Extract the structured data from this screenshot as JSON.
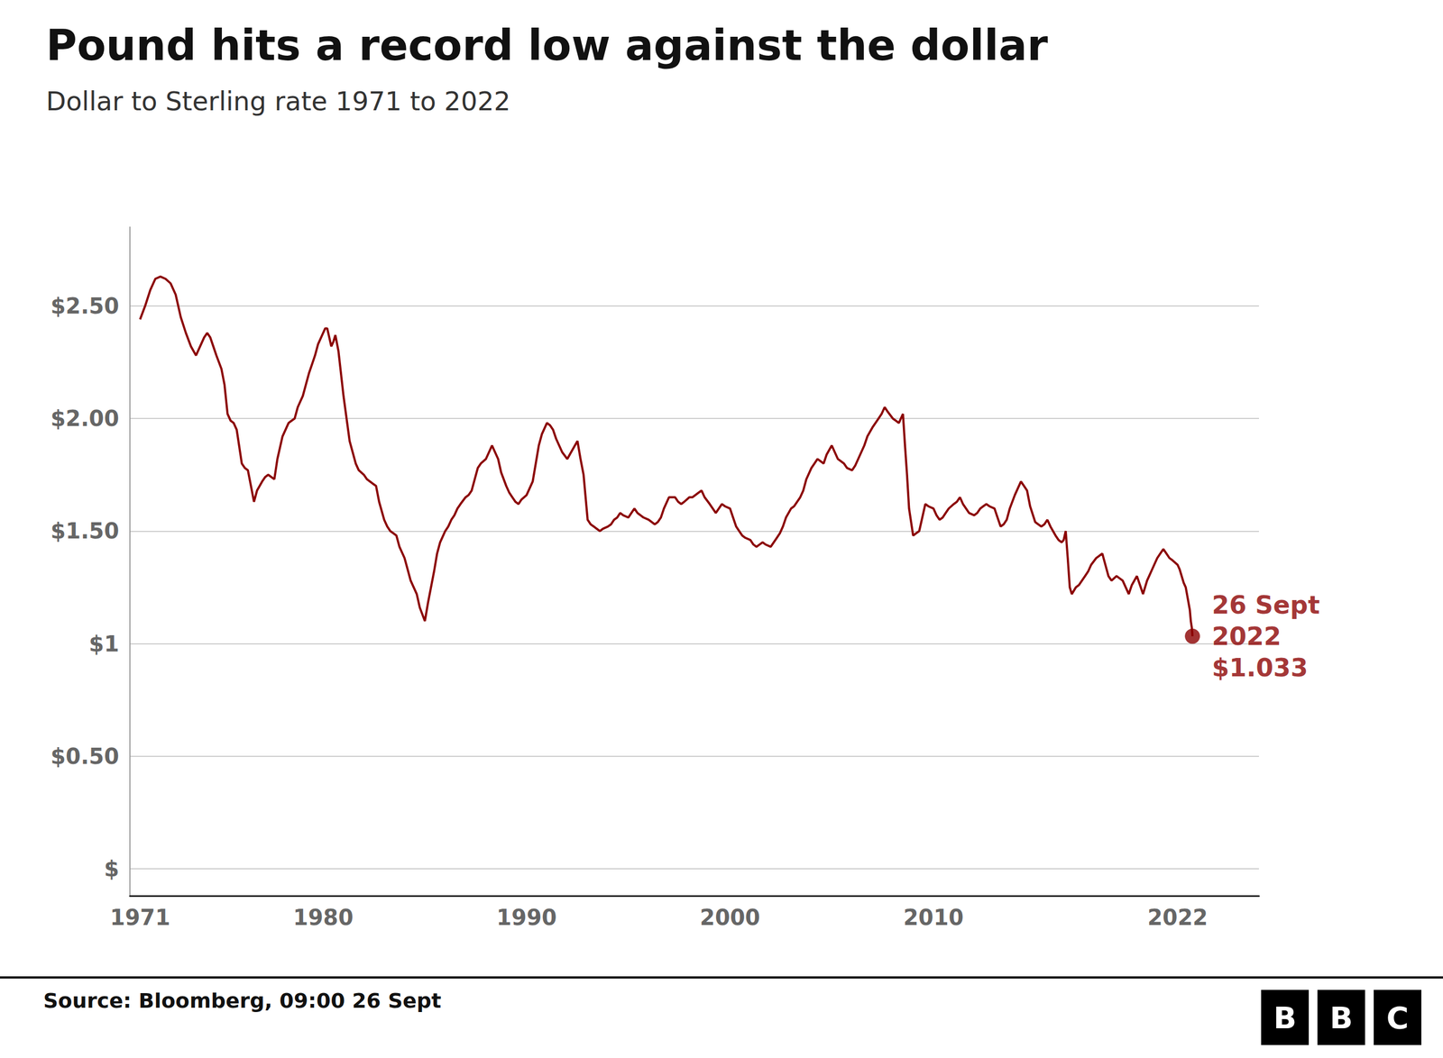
{
  "chart_data": {
    "type": "line",
    "title": "Pound hits a record low against the dollar",
    "subtitle": "Dollar to Sterling rate 1971 to 2022",
    "source": "Source: Bloomberg, 09:00 26 Sept",
    "logo": "BBC",
    "color": "#8B0000",
    "grid": true,
    "xlim": [
      1970.5,
      2026
    ],
    "xticks": [
      1971,
      1980,
      1990,
      2000,
      2010,
      2022
    ],
    "ylim": [
      -0.12,
      2.85
    ],
    "yticks": [
      {
        "value": 0.0,
        "label": "$"
      },
      {
        "value": 0.5,
        "label": "$0.50"
      },
      {
        "value": 1.0,
        "label": "$1"
      },
      {
        "value": 1.5,
        "label": "$1.50"
      },
      {
        "value": 2.0,
        "label": "$2.00"
      },
      {
        "value": 2.5,
        "label": "$2.50"
      }
    ],
    "annotations": [
      {
        "x": 2022.73,
        "y": 1.033,
        "lines": [
          "26 Sept",
          "2022",
          "$1.033"
        ],
        "color": "#8B0000"
      }
    ],
    "x": [
      1971.0,
      1971.25,
      1971.5,
      1971.75,
      1972.0,
      1972.25,
      1972.5,
      1972.75,
      1973.0,
      1973.25,
      1973.5,
      1973.75,
      1974.0,
      1974.15,
      1974.3,
      1974.45,
      1974.6,
      1974.75,
      1975.0,
      1975.15,
      1975.3,
      1975.45,
      1975.6,
      1975.75,
      1976.0,
      1976.15,
      1976.3,
      1976.45,
      1976.6,
      1976.75,
      1977.0,
      1977.15,
      1977.3,
      1977.45,
      1977.6,
      1977.75,
      1978.0,
      1978.15,
      1978.3,
      1978.45,
      1978.6,
      1978.75,
      1979.0,
      1979.15,
      1979.3,
      1979.45,
      1979.6,
      1979.75,
      1980.0,
      1980.1,
      1980.2,
      1980.3,
      1980.4,
      1980.5,
      1980.6,
      1980.75,
      1981.0,
      1981.15,
      1981.3,
      1981.45,
      1981.6,
      1981.75,
      1982.0,
      1982.15,
      1982.3,
      1982.45,
      1982.6,
      1982.75,
      1983.0,
      1983.15,
      1983.3,
      1983.45,
      1983.6,
      1983.75,
      1984.0,
      1984.15,
      1984.3,
      1984.45,
      1984.6,
      1984.75,
      1985.0,
      1985.15,
      1985.3,
      1985.45,
      1985.6,
      1985.75,
      1986.0,
      1986.15,
      1986.3,
      1986.45,
      1986.6,
      1986.75,
      1987.0,
      1987.15,
      1987.3,
      1987.45,
      1987.6,
      1987.75,
      1988.0,
      1988.15,
      1988.3,
      1988.45,
      1988.6,
      1988.75,
      1989.0,
      1989.15,
      1989.3,
      1989.45,
      1989.6,
      1989.75,
      1990.0,
      1990.15,
      1990.3,
      1990.45,
      1990.6,
      1990.75,
      1991.0,
      1991.15,
      1991.3,
      1991.45,
      1991.6,
      1991.75,
      1992.0,
      1992.25,
      1992.5,
      1992.65,
      1992.8,
      1992.9,
      1993.0,
      1993.15,
      1993.3,
      1993.45,
      1993.6,
      1993.75,
      1994.0,
      1994.15,
      1994.3,
      1994.45,
      1994.6,
      1994.75,
      1995.0,
      1995.15,
      1995.3,
      1995.45,
      1995.6,
      1995.75,
      1996.0,
      1996.15,
      1996.3,
      1996.45,
      1996.6,
      1996.75,
      1997.0,
      1997.15,
      1997.3,
      1997.45,
      1997.6,
      1997.75,
      1998.0,
      1998.15,
      1998.3,
      1998.45,
      1998.6,
      1998.75,
      1999.0,
      1999.15,
      1999.3,
      1999.45,
      1999.6,
      1999.75,
      2000.0,
      2000.15,
      2000.3,
      2000.45,
      2000.6,
      2000.75,
      2001.0,
      2001.15,
      2001.3,
      2001.45,
      2001.6,
      2001.75,
      2002.0,
      2002.15,
      2002.3,
      2002.45,
      2002.6,
      2002.75,
      2003.0,
      2003.15,
      2003.3,
      2003.45,
      2003.6,
      2003.75,
      2004.0,
      2004.15,
      2004.3,
      2004.45,
      2004.6,
      2004.75,
      2005.0,
      2005.15,
      2005.3,
      2005.45,
      2005.6,
      2005.75,
      2006.0,
      2006.15,
      2006.3,
      2006.45,
      2006.6,
      2006.75,
      2007.0,
      2007.15,
      2007.3,
      2007.45,
      2007.6,
      2007.75,
      2008.0,
      2008.15,
      2008.3,
      2008.4,
      2008.5,
      2008.6,
      2008.7,
      2008.8,
      2009.0,
      2009.15,
      2009.3,
      2009.45,
      2009.6,
      2009.75,
      2010.0,
      2010.15,
      2010.3,
      2010.45,
      2010.6,
      2010.75,
      2011.0,
      2011.15,
      2011.3,
      2011.45,
      2011.6,
      2011.75,
      2012.0,
      2012.15,
      2012.3,
      2012.45,
      2012.6,
      2012.75,
      2013.0,
      2013.15,
      2013.3,
      2013.45,
      2013.6,
      2013.75,
      2014.0,
      2014.15,
      2014.3,
      2014.45,
      2014.6,
      2014.75,
      2015.0,
      2015.15,
      2015.3,
      2015.45,
      2015.6,
      2015.75,
      2016.0,
      2016.15,
      2016.3,
      2016.4,
      2016.5,
      2016.6,
      2016.7,
      2016.8,
      2017.0,
      2017.15,
      2017.3,
      2017.45,
      2017.6,
      2017.75,
      2018.0,
      2018.15,
      2018.3,
      2018.45,
      2018.6,
      2018.75,
      2019.0,
      2019.15,
      2019.3,
      2019.45,
      2019.6,
      2019.75,
      2020.0,
      2020.15,
      2020.3,
      2020.4,
      2020.5,
      2020.6,
      2020.7,
      2020.85,
      2021.0,
      2021.15,
      2021.3,
      2021.45,
      2021.6,
      2021.75,
      2022.0,
      2022.1,
      2022.2,
      2022.3,
      2022.4,
      2022.5,
      2022.6,
      2022.65,
      2022.7,
      2022.73
    ],
    "values": [
      2.44,
      2.5,
      2.57,
      2.62,
      2.63,
      2.62,
      2.6,
      2.55,
      2.45,
      2.38,
      2.32,
      2.28,
      2.33,
      2.36,
      2.38,
      2.36,
      2.32,
      2.28,
      2.22,
      2.15,
      2.02,
      1.99,
      1.98,
      1.95,
      1.8,
      1.78,
      1.77,
      1.7,
      1.63,
      1.68,
      1.72,
      1.74,
      1.75,
      1.74,
      1.73,
      1.82,
      1.92,
      1.95,
      1.98,
      1.99,
      2.0,
      2.05,
      2.1,
      2.15,
      2.2,
      2.24,
      2.28,
      2.33,
      2.38,
      2.4,
      2.4,
      2.36,
      2.32,
      2.34,
      2.37,
      2.3,
      2.1,
      2.0,
      1.9,
      1.85,
      1.8,
      1.77,
      1.75,
      1.73,
      1.72,
      1.71,
      1.7,
      1.63,
      1.55,
      1.52,
      1.5,
      1.49,
      1.48,
      1.43,
      1.38,
      1.33,
      1.28,
      1.25,
      1.22,
      1.16,
      1.1,
      1.18,
      1.25,
      1.32,
      1.4,
      1.45,
      1.5,
      1.52,
      1.55,
      1.57,
      1.6,
      1.62,
      1.65,
      1.66,
      1.68,
      1.73,
      1.78,
      1.8,
      1.82,
      1.85,
      1.88,
      1.85,
      1.82,
      1.76,
      1.7,
      1.67,
      1.65,
      1.63,
      1.62,
      1.64,
      1.66,
      1.69,
      1.72,
      1.8,
      1.88,
      1.93,
      1.98,
      1.97,
      1.95,
      1.91,
      1.88,
      1.85,
      1.82,
      1.86,
      1.9,
      1.82,
      1.75,
      1.65,
      1.55,
      1.53,
      1.52,
      1.51,
      1.5,
      1.51,
      1.52,
      1.53,
      1.55,
      1.56,
      1.58,
      1.57,
      1.56,
      1.58,
      1.6,
      1.58,
      1.57,
      1.56,
      1.55,
      1.54,
      1.53,
      1.54,
      1.56,
      1.6,
      1.65,
      1.65,
      1.65,
      1.63,
      1.62,
      1.63,
      1.65,
      1.65,
      1.66,
      1.67,
      1.68,
      1.65,
      1.62,
      1.6,
      1.58,
      1.6,
      1.62,
      1.61,
      1.6,
      1.56,
      1.52,
      1.5,
      1.48,
      1.47,
      1.46,
      1.44,
      1.43,
      1.44,
      1.45,
      1.44,
      1.43,
      1.45,
      1.47,
      1.49,
      1.52,
      1.56,
      1.6,
      1.61,
      1.63,
      1.65,
      1.68,
      1.73,
      1.78,
      1.8,
      1.82,
      1.81,
      1.8,
      1.84,
      1.88,
      1.85,
      1.82,
      1.81,
      1.8,
      1.78,
      1.77,
      1.79,
      1.82,
      1.85,
      1.88,
      1.92,
      1.96,
      1.98,
      2.0,
      2.02,
      2.05,
      2.03,
      2.0,
      1.99,
      1.98,
      2.0,
      2.02,
      1.88,
      1.75,
      1.6,
      1.48,
      1.49,
      1.5,
      1.56,
      1.62,
      1.61,
      1.6,
      1.57,
      1.55,
      1.56,
      1.58,
      1.6,
      1.62,
      1.63,
      1.65,
      1.62,
      1.6,
      1.58,
      1.57,
      1.58,
      1.6,
      1.61,
      1.62,
      1.61,
      1.6,
      1.56,
      1.52,
      1.53,
      1.55,
      1.6,
      1.66,
      1.69,
      1.72,
      1.7,
      1.68,
      1.61,
      1.54,
      1.53,
      1.52,
      1.53,
      1.55,
      1.52,
      1.48,
      1.46,
      1.45,
      1.46,
      1.5,
      1.38,
      1.25,
      1.22,
      1.25,
      1.26,
      1.28,
      1.3,
      1.32,
      1.35,
      1.38,
      1.39,
      1.4,
      1.35,
      1.3,
      1.28,
      1.3,
      1.29,
      1.28,
      1.25,
      1.22,
      1.26,
      1.3,
      1.26,
      1.22,
      1.25,
      1.28,
      1.3,
      1.32,
      1.35,
      1.38,
      1.4,
      1.42,
      1.4,
      1.38,
      1.37,
      1.35,
      1.33,
      1.3,
      1.27,
      1.25,
      1.2,
      1.15,
      1.1,
      1.07,
      1.033
    ]
  }
}
